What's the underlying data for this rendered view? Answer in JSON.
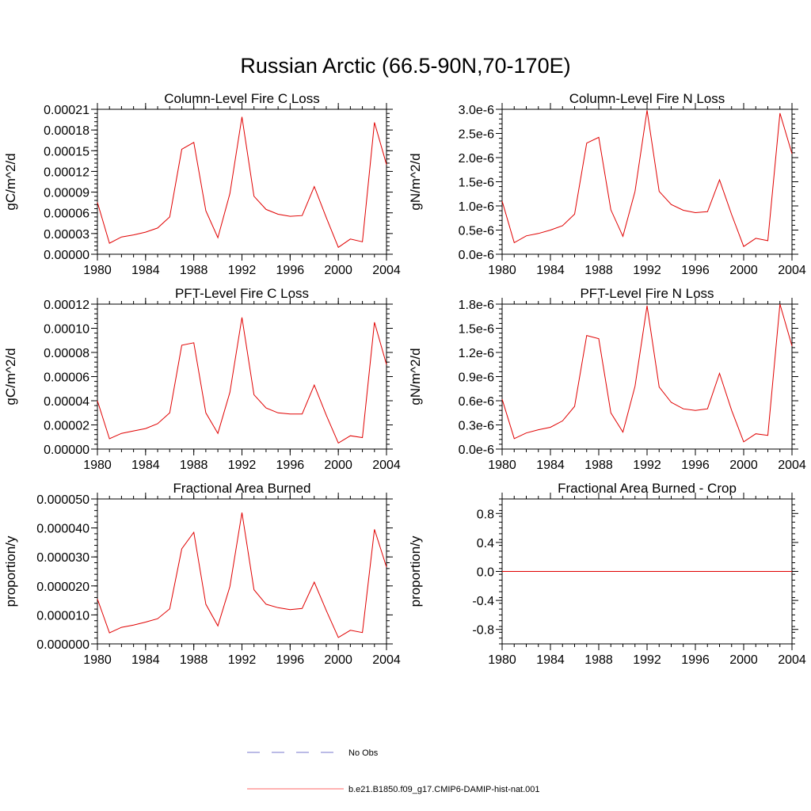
{
  "figure": {
    "title": "Russian Arctic (66.5-90N,70-170E)",
    "legend": [
      {
        "label": "No Obs",
        "color": "#7777cc",
        "dash": true
      },
      {
        "label": "b.e21.B1850.f09_g17.CMIP6-DAMIP-hist-nat.001",
        "color": "#ff6666",
        "dash": false
      }
    ]
  },
  "chart_data": [
    {
      "type": "line",
      "title": "Column-Level Fire C Loss",
      "ylabel": "gC/m^2/d",
      "xlim": [
        1980,
        2004
      ],
      "ylim": [
        0,
        0.00021
      ],
      "xticks": [
        1980,
        1984,
        1988,
        1992,
        1996,
        2000,
        2004
      ],
      "xticklabels": [
        "1980",
        "1984",
        "1988",
        "1992",
        "1996",
        "2000",
        "2004"
      ],
      "yticks": [
        0,
        3e-05,
        6e-05,
        9e-05,
        0.00012,
        0.00015,
        0.00018,
        0.00021
      ],
      "yticklabels": [
        "0.00000",
        "0.00003",
        "0.00006",
        "0.00009",
        "0.00012",
        "0.00015",
        "0.00018",
        "0.00021"
      ],
      "series": [
        {
          "name": "b.e21.B1850.f09_g17.CMIP6-DAMIP-hist-nat.001",
          "color": "#e00000",
          "x": [
            1980,
            1981,
            1982,
            1983,
            1984,
            1985,
            1986,
            1987,
            1988,
            1989,
            1990,
            1991,
            1992,
            1993,
            1994,
            1995,
            1996,
            1997,
            1998,
            1999,
            2000,
            2001,
            2002,
            2003,
            2004
          ],
          "y": [
            7.5e-05,
            1.6e-05,
            2.5e-05,
            2.8e-05,
            3.2e-05,
            3.8e-05,
            5.4e-05,
            0.000152,
            0.000162,
            6.3e-05,
            2.4e-05,
            8.8e-05,
            0.000199,
            8.4e-05,
            6.5e-05,
            5.8e-05,
            5.5e-05,
            5.6e-05,
            9.8e-05,
            5.3e-05,
            1e-05,
            2.2e-05,
            1.8e-05,
            0.000191,
            0.00013
          ]
        }
      ]
    },
    {
      "type": "line",
      "title": "Column-Level Fire N Loss",
      "ylabel": "gN/m^2/d",
      "xlim": [
        1980,
        2004
      ],
      "ylim": [
        0,
        3e-06
      ],
      "xticks": [
        1980,
        1984,
        1988,
        1992,
        1996,
        2000,
        2004
      ],
      "xticklabels": [
        "1980",
        "1984",
        "1988",
        "1992",
        "1996",
        "2000",
        "2004"
      ],
      "yticks": [
        0,
        5e-07,
        1e-06,
        1.5e-06,
        2e-06,
        2.5e-06,
        3e-06
      ],
      "yticklabels": [
        "0.0e-6",
        "0.5e-6",
        "1.0e-6",
        "1.5e-6",
        "2.0e-6",
        "2.5e-6",
        "3.0e-6"
      ],
      "series": [
        {
          "name": "b.e21.B1850.f09_g17.CMIP6-DAMIP-hist-nat.001",
          "color": "#e00000",
          "x": [
            1980,
            1981,
            1982,
            1983,
            1984,
            1985,
            1986,
            1987,
            1988,
            1989,
            1990,
            1991,
            1992,
            1993,
            1994,
            1995,
            1996,
            1997,
            1998,
            1999,
            2000,
            2001,
            2002,
            2003,
            2004
          ],
          "y": [
            1.1e-06,
            2.4e-07,
            3.8e-07,
            4.3e-07,
            5e-07,
            5.9e-07,
            8.3e-07,
            2.3e-06,
            2.42e-06,
            9.2e-07,
            3.7e-07,
            1.3e-06,
            2.98e-06,
            1.3e-06,
            1.03e-06,
            9.1e-07,
            8.6e-07,
            8.8e-07,
            1.54e-06,
            8.2e-07,
            1.6e-07,
            3.3e-07,
            2.8e-07,
            2.92e-06,
            2.08e-06
          ]
        }
      ]
    },
    {
      "type": "line",
      "title": "PFT-Level Fire C Loss",
      "ylabel": "gC/m^2/d",
      "xlim": [
        1980,
        2004
      ],
      "ylim": [
        0,
        0.00012
      ],
      "xticks": [
        1980,
        1984,
        1988,
        1992,
        1996,
        2000,
        2004
      ],
      "xticklabels": [
        "1980",
        "1984",
        "1988",
        "1992",
        "1996",
        "2000",
        "2004"
      ],
      "yticks": [
        0,
        2e-05,
        4e-05,
        6e-05,
        8e-05,
        0.0001,
        0.00012
      ],
      "yticklabels": [
        "0.00000",
        "0.00002",
        "0.00004",
        "0.00006",
        "0.00008",
        "0.00010",
        "0.00012"
      ],
      "series": [
        {
          "name": "b.e21.B1850.f09_g17.CMIP6-DAMIP-hist-nat.001",
          "color": "#e00000",
          "x": [
            1980,
            1981,
            1982,
            1983,
            1984,
            1985,
            1986,
            1987,
            1988,
            1989,
            1990,
            1991,
            1992,
            1993,
            1994,
            1995,
            1996,
            1997,
            1998,
            1999,
            2000,
            2001,
            2002,
            2003,
            2004
          ],
          "y": [
            4e-05,
            8.5e-06,
            1.3e-05,
            1.5e-05,
            1.7e-05,
            2.1e-05,
            3e-05,
            8.6e-05,
            8.8e-05,
            3e-05,
            1.3e-05,
            4.7e-05,
            0.000109,
            4.5e-05,
            3.4e-05,
            3e-05,
            2.9e-05,
            2.9e-05,
            5.3e-05,
            2.8e-05,
            5e-06,
            1.1e-05,
            9.5e-06,
            0.000105,
            7e-05
          ]
        }
      ]
    },
    {
      "type": "line",
      "title": "PFT-Level Fire N Loss",
      "ylabel": "gN/m^2/d",
      "xlim": [
        1980,
        2004
      ],
      "ylim": [
        0,
        1.8e-06
      ],
      "xticks": [
        1980,
        1984,
        1988,
        1992,
        1996,
        2000,
        2004
      ],
      "xticklabels": [
        "1980",
        "1984",
        "1988",
        "1992",
        "1996",
        "2000",
        "2004"
      ],
      "yticks": [
        0,
        3e-07,
        6e-07,
        9e-07,
        1.2e-06,
        1.5e-06,
        1.8e-06
      ],
      "yticklabels": [
        "0.0e-6",
        "0.3e-6",
        "0.6e-6",
        "0.9e-6",
        "1.2e-6",
        "1.5e-6",
        "1.8e-6"
      ],
      "series": [
        {
          "name": "b.e21.B1850.f09_g17.CMIP6-DAMIP-hist-nat.001",
          "color": "#e00000",
          "x": [
            1980,
            1981,
            1982,
            1983,
            1984,
            1985,
            1986,
            1987,
            1988,
            1989,
            1990,
            1991,
            1992,
            1993,
            1994,
            1995,
            1996,
            1997,
            1998,
            1999,
            2000,
            2001,
            2002,
            2003,
            2004
          ],
          "y": [
            6.2e-07,
            1.3e-07,
            2e-07,
            2.4e-07,
            2.7e-07,
            3.5e-07,
            5.3e-07,
            1.41e-06,
            1.37e-06,
            4.5e-07,
            2.1e-07,
            7.8e-07,
            1.78e-06,
            7.7e-07,
            5.8e-07,
            5e-07,
            4.8e-07,
            5e-07,
            9.4e-07,
            4.8e-07,
            9e-08,
            1.9e-07,
            1.7e-07,
            1.8e-06,
            1.28e-06
          ]
        }
      ]
    },
    {
      "type": "line",
      "title": "Fractional Area Burned",
      "ylabel": "proportion/y",
      "xlim": [
        1980,
        2004
      ],
      "ylim": [
        0,
        5e-05
      ],
      "xticks": [
        1980,
        1984,
        1988,
        1992,
        1996,
        2000,
        2004
      ],
      "xticklabels": [
        "1980",
        "1984",
        "1988",
        "1992",
        "1996",
        "2000",
        "2004"
      ],
      "yticks": [
        0,
        1e-05,
        2e-05,
        3e-05,
        4e-05,
        5e-05
      ],
      "yticklabels": [
        "0.000000",
        "0.000010",
        "0.000020",
        "0.000030",
        "0.000040",
        "0.000050"
      ],
      "series": [
        {
          "name": "b.e21.B1850.f09_g17.CMIP6-DAMIP-hist-nat.001",
          "color": "#e00000",
          "x": [
            1980,
            1981,
            1982,
            1983,
            1984,
            1985,
            1986,
            1987,
            1988,
            1989,
            1990,
            1991,
            1992,
            1993,
            1994,
            1995,
            1996,
            1997,
            1998,
            1999,
            2000,
            2001,
            2002,
            2003,
            2004
          ],
          "y": [
            1.55e-05,
            3.8e-06,
            5.7e-06,
            6.5e-06,
            7.5e-06,
            8.7e-06,
            1.21e-05,
            3.28e-05,
            3.85e-05,
            1.37e-05,
            6.2e-06,
            1.98e-05,
            4.53e-05,
            1.87e-05,
            1.37e-05,
            1.25e-05,
            1.18e-05,
            1.22e-05,
            2.13e-05,
            1.15e-05,
            2.2e-06,
            4.7e-06,
            3.9e-06,
            3.95e-05,
            2.65e-05
          ]
        }
      ]
    },
    {
      "type": "line",
      "title": "Fractional Area Burned - Crop",
      "ylabel": "proportion/y",
      "xlim": [
        1980,
        2004
      ],
      "ylim": [
        -1,
        1
      ],
      "xticks": [
        1980,
        1984,
        1988,
        1992,
        1996,
        2000,
        2004
      ],
      "xticklabels": [
        "1980",
        "1984",
        "1988",
        "1992",
        "1996",
        "2000",
        "2004"
      ],
      "yticks": [
        -0.8,
        -0.4,
        0,
        0.4,
        0.8
      ],
      "yticklabels": [
        "-0.8",
        "-0.4",
        "0.0",
        "0.4",
        "0.8"
      ],
      "series": [
        {
          "name": "b.e21.B1850.f09_g17.CMIP6-DAMIP-hist-nat.001",
          "color": "#e00000",
          "x": [
            1980,
            2004
          ],
          "y": [
            0,
            0
          ]
        }
      ]
    }
  ]
}
